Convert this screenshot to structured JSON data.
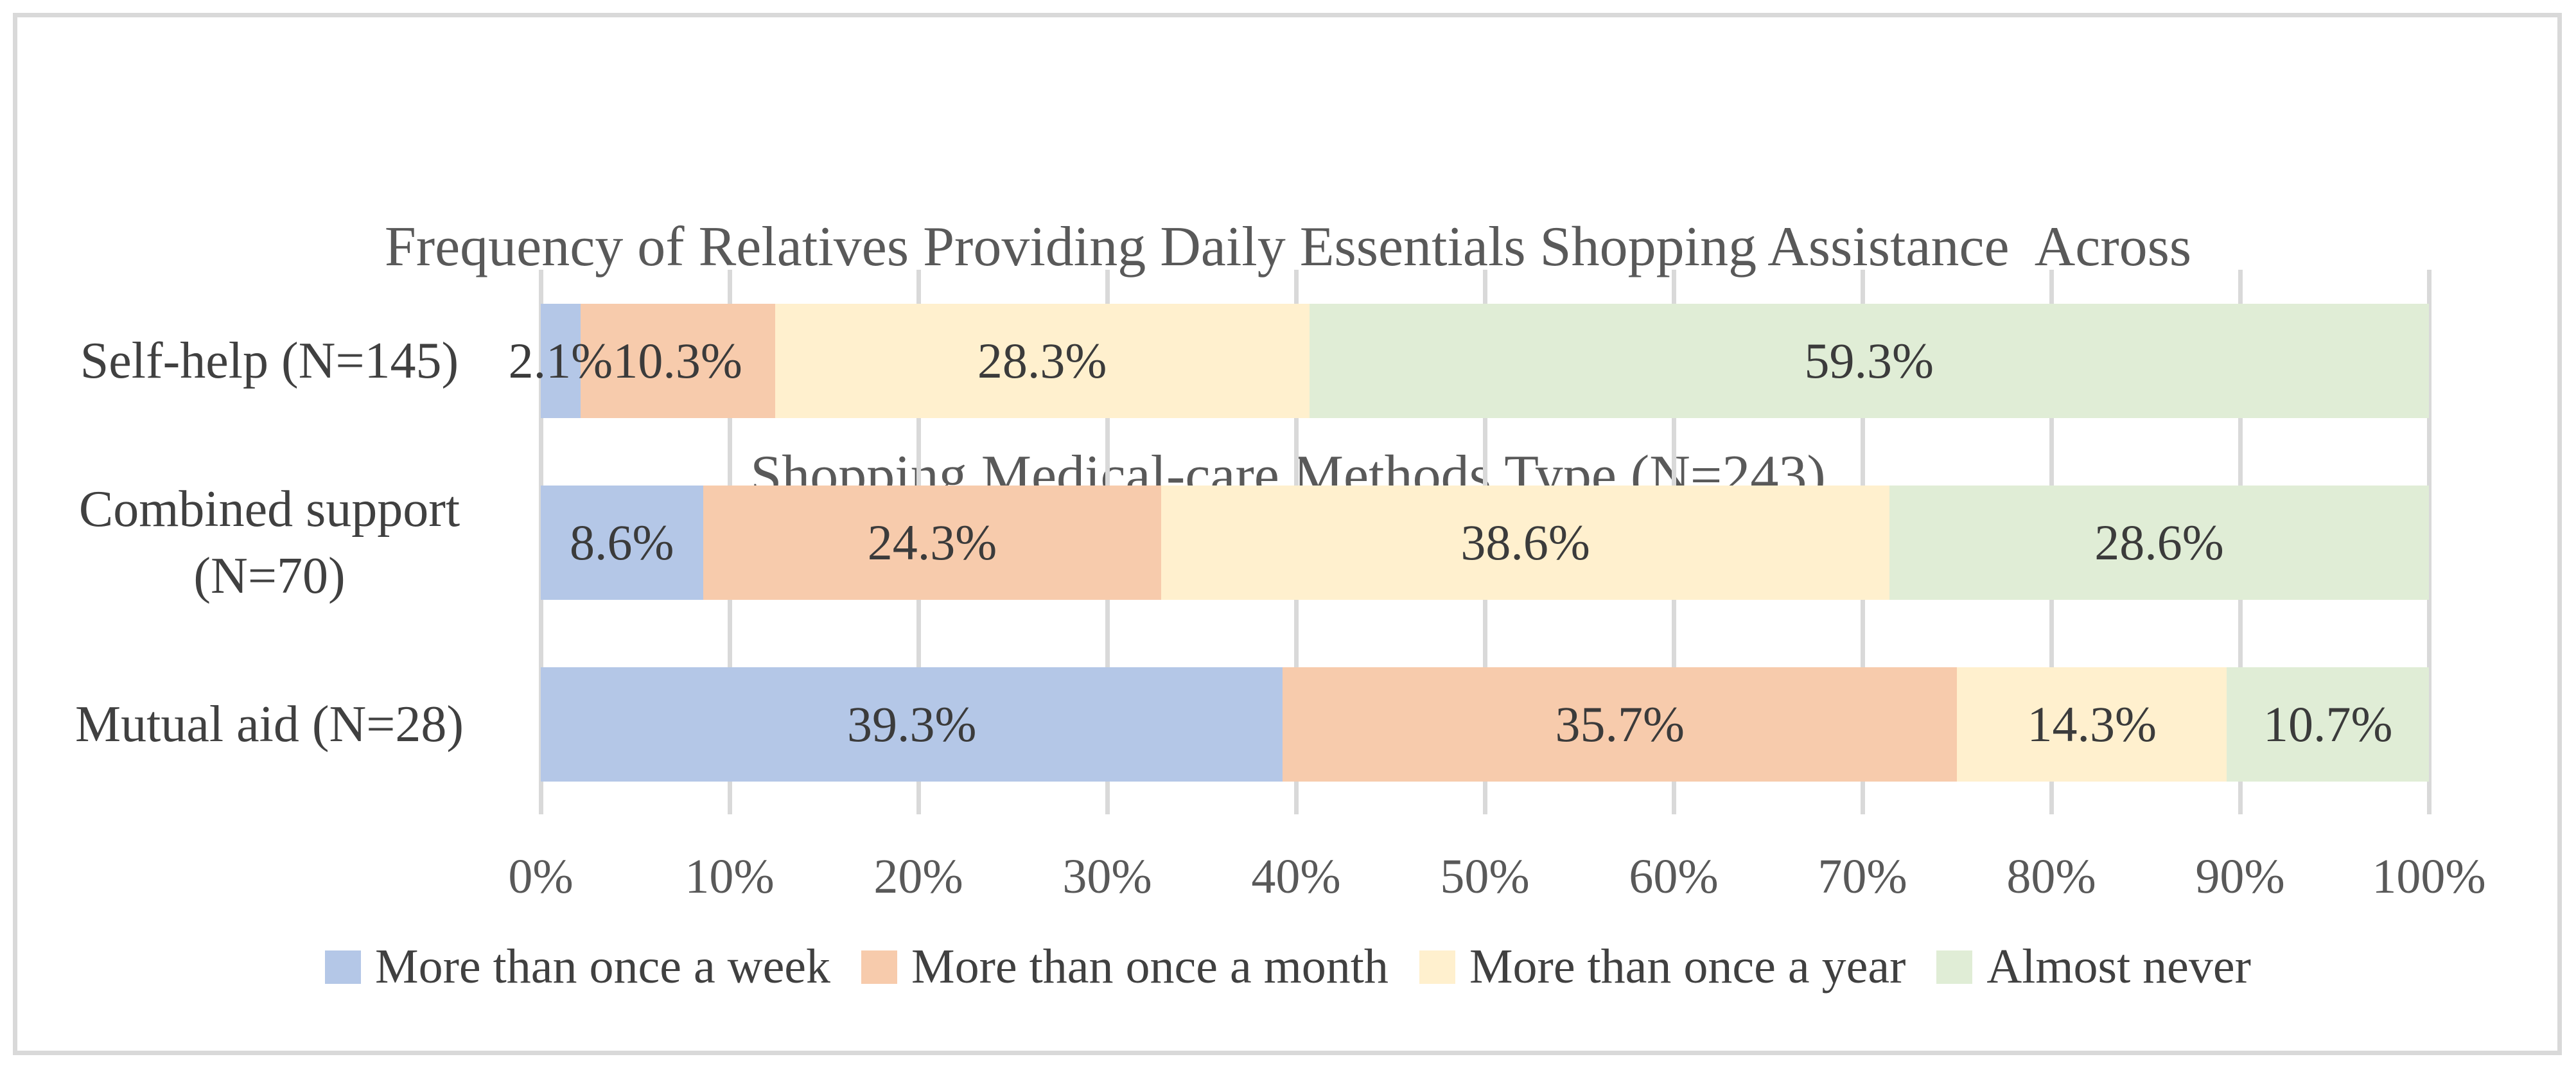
{
  "frame": {
    "border_color": "#D9D9D9"
  },
  "chart_data": {
    "type": "bar",
    "orientation": "horizontal",
    "stacked": true,
    "title": "Frequency of Relatives Providing Daily Essentials Shopping Assistance  Across Shopping Medical-care Methods Type (N=243)",
    "title_lines": [
      "Frequency of Relatives Providing Daily Essentials Shopping Assistance  Across",
      "Shopping Medical-care Methods Type (N=243)"
    ],
    "categories": [
      "Self-help (N=145)",
      "Combined support (N=70)",
      "Mutual aid (N=28)"
    ],
    "series": [
      {
        "name": "More than once a week",
        "color": "#B4C7E7",
        "values": [
          2.1,
          8.6,
          39.3
        ]
      },
      {
        "name": "More than once a month",
        "color": "#F7CBAC",
        "values": [
          10.3,
          24.3,
          35.7
        ]
      },
      {
        "name": "More than once a year",
        "color": "#FFF0CE",
        "values": [
          28.3,
          38.6,
          14.3
        ]
      },
      {
        "name": "Almost never",
        "color": "#E0EDD6",
        "values": [
          59.3,
          28.6,
          10.7
        ]
      }
    ],
    "value_label_format": "percent_one_decimal",
    "x_axis": {
      "min": 0,
      "max": 100,
      "tick_step": 10,
      "ticks": [
        "0%",
        "10%",
        "20%",
        "30%",
        "40%",
        "50%",
        "60%",
        "70%",
        "80%",
        "90%",
        "100%"
      ],
      "gridlines": true,
      "gridline_color": "#D9D9D9"
    },
    "legend": {
      "position": "bottom",
      "items": [
        "More than once a week",
        "More than once a month",
        "More than once a year",
        "Almost never"
      ]
    },
    "colors": {
      "title_text": "#595959",
      "tick_text": "#595959",
      "category_text": "#404040",
      "value_text": "#3B3B3B",
      "legend_text": "#404040",
      "frame_border": "#D9D9D9"
    }
  }
}
